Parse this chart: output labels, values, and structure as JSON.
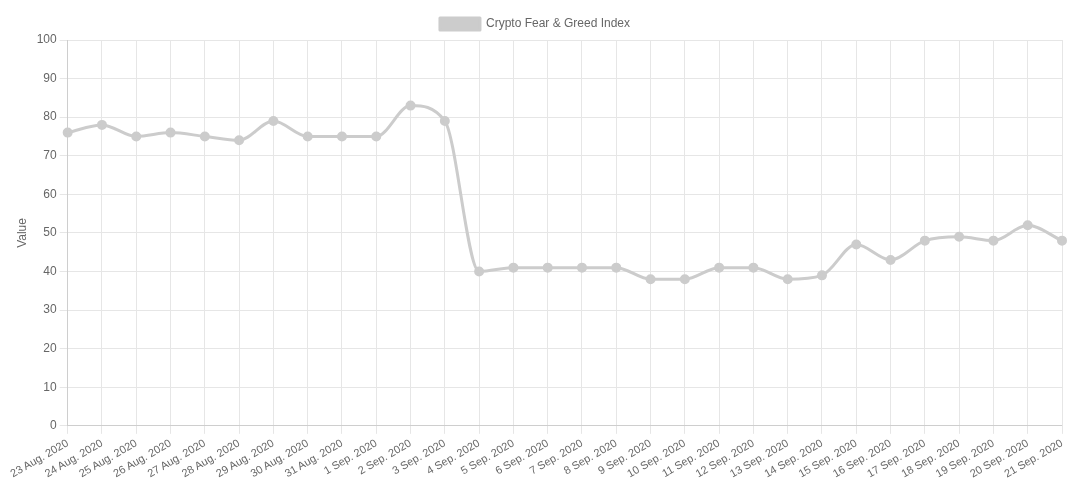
{
  "chart_data": {
    "type": "line",
    "ylabel": "Value",
    "categories": [
      "23 Aug. 2020",
      "24 Aug. 2020",
      "25 Aug. 2020",
      "26 Aug. 2020",
      "27 Aug. 2020",
      "28 Aug. 2020",
      "29 Aug. 2020",
      "30 Aug. 2020",
      "31 Aug. 2020",
      "1 Sep. 2020",
      "2 Sep. 2020",
      "3 Sep. 2020",
      "4 Sep. 2020",
      "5 Sep. 2020",
      "6 Sep. 2020",
      "7 Sep. 2020",
      "8 Sep. 2020",
      "9 Sep. 2020",
      "10 Sep. 2020",
      "11 Sep. 2020",
      "12 Sep. 2020",
      "13 Sep. 2020",
      "14 Sep. 2020",
      "15 Sep. 2020",
      "16 Sep. 2020",
      "17 Sep. 2020",
      "18 Sep. 2020",
      "19 Sep. 2020",
      "20 Sep. 2020",
      "21 Sep. 2020"
    ],
    "series": [
      {
        "name": "Crypto Fear & Greed Index",
        "color": "#cccccc",
        "values": [
          76,
          78,
          75,
          76,
          75,
          74,
          79,
          75,
          75,
          75,
          83,
          79,
          40,
          41,
          41,
          41,
          41,
          38,
          38,
          41,
          41,
          38,
          39,
          47,
          43,
          48,
          49,
          48,
          52,
          48
        ]
      }
    ],
    "ylim": [
      0,
      100
    ],
    "yticks": [
      0,
      10,
      20,
      30,
      40,
      50,
      60,
      70,
      80,
      90,
      100
    ],
    "grid": true,
    "legend": "top",
    "marker": "circle",
    "line_style": "solid"
  }
}
